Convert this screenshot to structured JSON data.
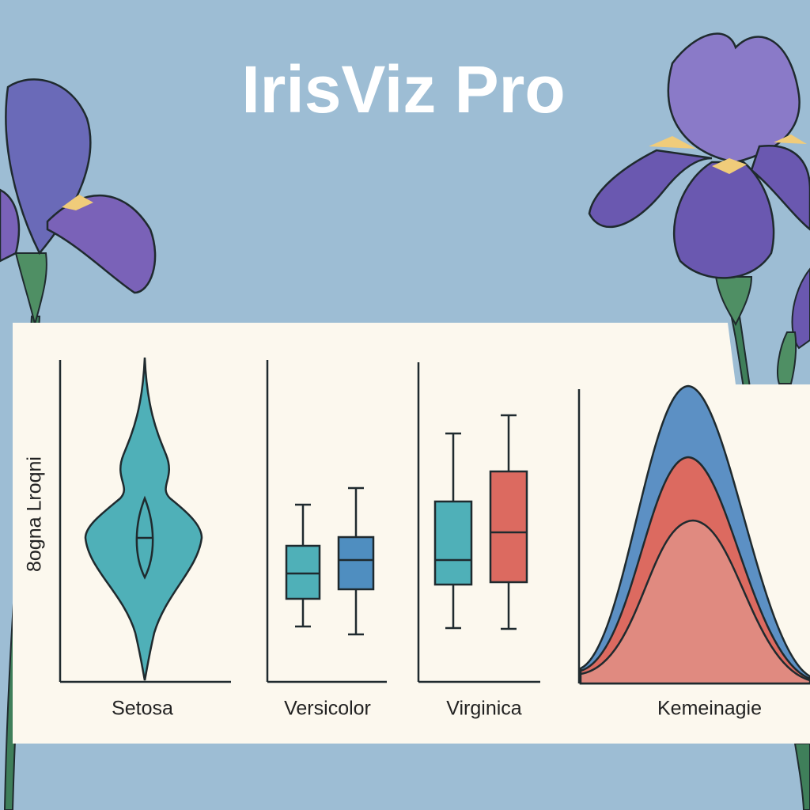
{
  "header": {
    "title": "IrisViz Pro"
  },
  "panels": [
    {
      "label": "Setosa",
      "y_axis_label": "8ogna Lroqni"
    },
    {
      "label": "Versicolor"
    },
    {
      "label": "Virginica"
    },
    {
      "label": "Kemeinagie"
    }
  ]
}
